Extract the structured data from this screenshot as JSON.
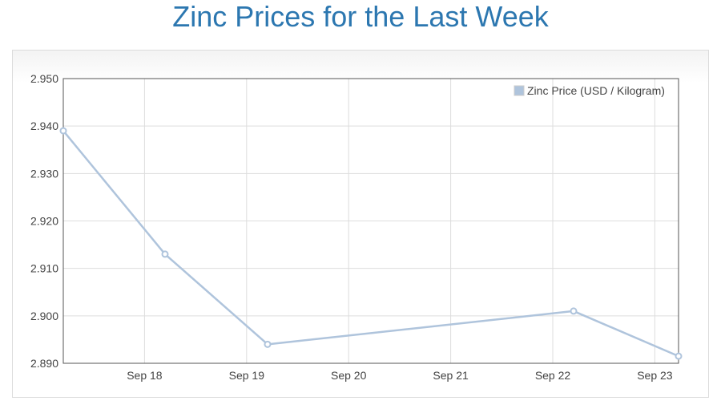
{
  "page": {
    "title": "Zinc Prices for the Last Week"
  },
  "chart_data": {
    "type": "line",
    "title": "Zinc Prices for the Last Week",
    "xlabel": "",
    "ylabel": "",
    "x_ticks": [
      "Sep 18",
      "Sep 19",
      "Sep 20",
      "Sep 21",
      "Sep 22",
      "Sep 23"
    ],
    "y_ticks": [
      "2.950",
      "2.940",
      "2.930",
      "2.920",
      "2.910",
      "2.900",
      "2.890"
    ],
    "ylim": [
      2.89,
      2.95
    ],
    "grid": true,
    "legend_position": "top-right",
    "series": [
      {
        "name": "Zinc Price (USD / Kilogram)",
        "color": "#afc4dc",
        "points": [
          {
            "x": "Sep 17",
            "y": 2.939
          },
          {
            "x": "Sep 18",
            "y": 2.913
          },
          {
            "x": "Sep 19",
            "y": 2.894
          },
          {
            "x": "Sep 22",
            "y": 2.901
          },
          {
            "x": "Sep 23",
            "y": 2.8915
          }
        ]
      }
    ]
  }
}
